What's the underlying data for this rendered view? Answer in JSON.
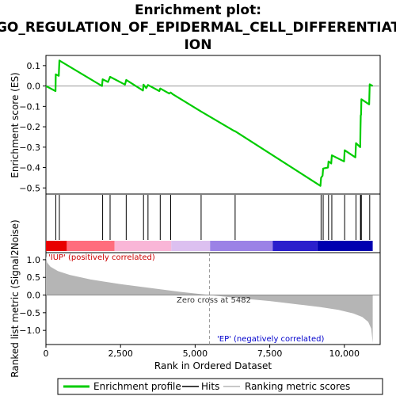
{
  "chart_data": {
    "type": "line",
    "title_lines": [
      "Enrichment plot:",
      "GO_REGULATION_OF_EPIDERMAL_CELL_DIFFERENTIAT",
      "ION"
    ],
    "xlabel": "Rank in Ordered Dataset",
    "xlim": [
      0,
      11200
    ],
    "x_ticks": [
      0,
      2500,
      5000,
      7500,
      10000
    ],
    "x_tick_labels": [
      "0",
      "2,500",
      "5,000",
      "7,500",
      "10,000"
    ],
    "es_panel": {
      "ylabel": "Enrichment score (ES)",
      "ylim": [
        -0.53,
        0.15
      ],
      "y_ticks": [
        0.1,
        0.0,
        -0.1,
        -0.2,
        -0.3,
        -0.4,
        -0.5
      ],
      "y_tick_labels": [
        "0.1",
        "0.0",
        "−0.1",
        "−0.2",
        "−0.3",
        "−0.4",
        "−0.5"
      ],
      "series_name": "Enrichment profile",
      "color": "#00cc00",
      "points": [
        [
          0,
          0.0
        ],
        [
          320,
          -0.025
        ],
        [
          330,
          0.057
        ],
        [
          430,
          0.05
        ],
        [
          450,
          0.125
        ],
        [
          1880,
          0.0
        ],
        [
          1900,
          0.033
        ],
        [
          2080,
          0.02
        ],
        [
          2150,
          0.045
        ],
        [
          2650,
          0.007
        ],
        [
          2690,
          0.03
        ],
        [
          3250,
          -0.022
        ],
        [
          3270,
          0.007
        ],
        [
          3360,
          -0.01
        ],
        [
          3420,
          0.005
        ],
        [
          3800,
          -0.025
        ],
        [
          3830,
          -0.012
        ],
        [
          4130,
          -0.037
        ],
        [
          4180,
          -0.032
        ],
        [
          4250,
          -0.04
        ],
        [
          5200,
          -0.125
        ],
        [
          6300,
          -0.22
        ],
        [
          6340,
          -0.222
        ],
        [
          9200,
          -0.49
        ],
        [
          9220,
          -0.45
        ],
        [
          9270,
          -0.44
        ],
        [
          9290,
          -0.405
        ],
        [
          9450,
          -0.4
        ],
        [
          9470,
          -0.37
        ],
        [
          9560,
          -0.38
        ],
        [
          9580,
          -0.34
        ],
        [
          9990,
          -0.37
        ],
        [
          10010,
          -0.315
        ],
        [
          10370,
          -0.35
        ],
        [
          10390,
          -0.28
        ],
        [
          10530,
          -0.3
        ],
        [
          10540,
          -0.22
        ],
        [
          10550,
          -0.145
        ],
        [
          10560,
          -0.14
        ],
        [
          10570,
          -0.065
        ],
        [
          10830,
          -0.09
        ],
        [
          10850,
          0.008
        ],
        [
          10950,
          0.0
        ]
      ]
    },
    "hits": {
      "series_name": "Hits",
      "positions": [
        330,
        450,
        1900,
        2150,
        2690,
        3270,
        3420,
        3830,
        4180,
        5200,
        6340,
        9220,
        9290,
        9470,
        9580,
        10010,
        10390,
        10540,
        10560,
        10570,
        10850
      ]
    },
    "rank_colorbar": {
      "stops": [
        "#e80000",
        "#ff6d7d",
        "#f9b6d7",
        "#dcc0f0",
        "#9b82e6",
        "#2b1fcc",
        "#0000b0"
      ],
      "boundaries": [
        0,
        700,
        2300,
        4200,
        5500,
        7600,
        9100,
        10950
      ]
    },
    "metric_panel": {
      "ylabel": "Ranked list metric (Signal2Noise)",
      "ylim": [
        -1.4,
        1.2
      ],
      "y_ticks": [
        1.0,
        0.5,
        0.0,
        -0.5,
        -1.0
      ],
      "y_tick_labels": [
        "1.0",
        "0.5",
        "0.0",
        "−0.5",
        "−1.0"
      ],
      "series_name": "Ranking metric scores",
      "fill_color": "#b5b5b5",
      "points": [
        [
          0,
          1.1
        ],
        [
          40,
          0.92
        ],
        [
          150,
          0.8
        ],
        [
          400,
          0.68
        ],
        [
          800,
          0.57
        ],
        [
          1500,
          0.44
        ],
        [
          2500,
          0.31
        ],
        [
          3500,
          0.2
        ],
        [
          4500,
          0.09
        ],
        [
          5482,
          0.0
        ],
        [
          6500,
          -0.09
        ],
        [
          7500,
          -0.17
        ],
        [
          8500,
          -0.27
        ],
        [
          9200,
          -0.34
        ],
        [
          9800,
          -0.42
        ],
        [
          10300,
          -0.52
        ],
        [
          10600,
          -0.62
        ],
        [
          10800,
          -0.76
        ],
        [
          10900,
          -0.95
        ],
        [
          10950,
          -1.35
        ]
      ],
      "pos_label": "'IUP' (positively correlated)",
      "pos_color": "#cc0000",
      "neg_label": "'EP' (negatively correlated)",
      "neg_color": "#0000cc",
      "zero_cross_label": "Zero cross at 5482",
      "zero_cross_x": 5482
    },
    "legend": {
      "placement": "bottom",
      "items": [
        {
          "label": "Enrichment profile",
          "color": "#00cc00",
          "style": "thick-line"
        },
        {
          "label": "Hits",
          "color": "#000000",
          "style": "line"
        },
        {
          "label": "Ranking metric scores",
          "color": "#b5b5b5",
          "style": "line"
        }
      ]
    }
  }
}
